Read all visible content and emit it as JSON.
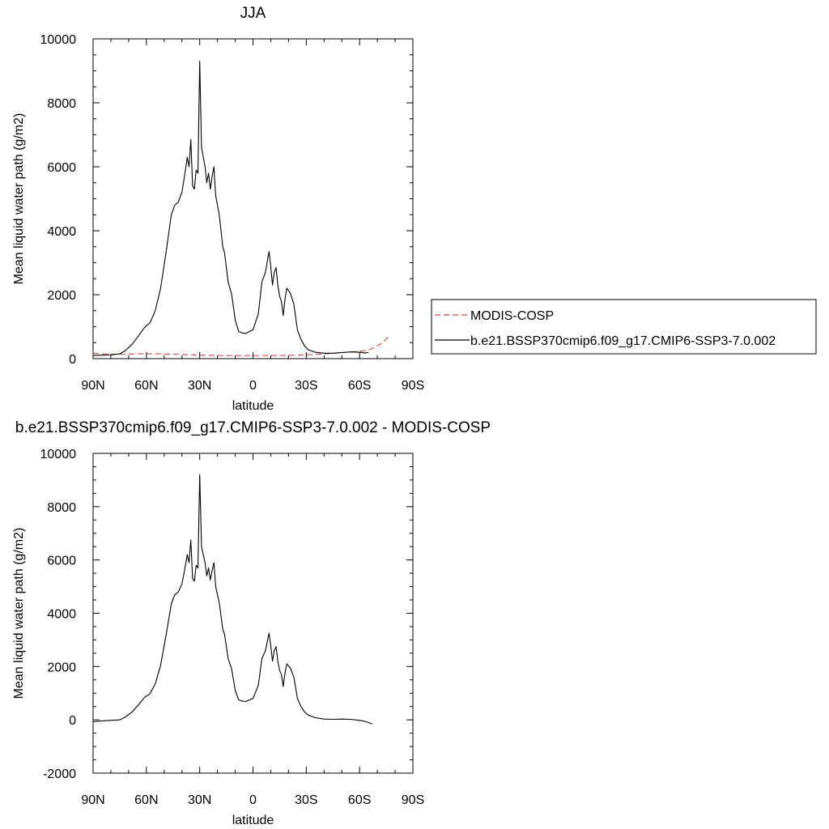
{
  "chart_data": [
    {
      "type": "line",
      "title": "JJA",
      "xlabel": "latitude",
      "ylabel": "Mean liquid water path (g/m2)",
      "xlim": [
        90,
        -90
      ],
      "ylim": [
        0,
        10000
      ],
      "x_ticks": [
        90,
        60,
        30,
        0,
        -30,
        -60,
        -90
      ],
      "x_tick_labels": [
        "90N",
        "60N",
        "30N",
        "0",
        "30S",
        "60S",
        "90S"
      ],
      "y_ticks": [
        0,
        2000,
        4000,
        6000,
        8000,
        10000
      ],
      "y_tick_labels": [
        "0",
        "2000",
        "4000",
        "6000",
        "8000",
        "10000"
      ],
      "grid": false,
      "legend": "right-outside",
      "series": [
        {
          "name": "MODIS-COSP",
          "color": "#e8413d",
          "dash": "dashed",
          "points": [
            [
              90,
              170
            ],
            [
              85,
              150
            ],
            [
              80,
              140
            ],
            [
              75,
              140
            ],
            [
              70,
              145
            ],
            [
              65,
              150
            ],
            [
              60,
              150
            ],
            [
              55,
              150
            ],
            [
              50,
              145
            ],
            [
              45,
              140
            ],
            [
              40,
              130
            ],
            [
              35,
              120
            ],
            [
              30,
              110
            ],
            [
              25,
              105
            ],
            [
              20,
              100
            ],
            [
              15,
              95
            ],
            [
              10,
              95
            ],
            [
              5,
              95
            ],
            [
              0,
              95
            ],
            [
              -5,
              100
            ],
            [
              -10,
              100
            ],
            [
              -15,
              100
            ],
            [
              -20,
              105
            ],
            [
              -25,
              110
            ],
            [
              -30,
              120
            ],
            [
              -35,
              130
            ],
            [
              -40,
              150
            ],
            [
              -45,
              170
            ],
            [
              -50,
              190
            ],
            [
              -55,
              210
            ],
            [
              -60,
              230
            ],
            [
              -65,
              260
            ],
            [
              -70,
              400
            ],
            [
              -73,
              500
            ],
            [
              -76,
              680
            ]
          ]
        },
        {
          "name": "b.e21.BSSP370cmip6.f09_g17.CMIP6-SSP3-7.0.002",
          "color": "#000000",
          "dash": "solid",
          "points": [
            [
              90,
              100
            ],
            [
              85,
              110
            ],
            [
              80,
              120
            ],
            [
              75,
              150
            ],
            [
              72,
              250
            ],
            [
              68,
              450
            ],
            [
              64,
              750
            ],
            [
              61,
              980
            ],
            [
              58,
              1120
            ],
            [
              55,
              1500
            ],
            [
              52,
              2200
            ],
            [
              49,
              3300
            ],
            [
              46,
              4500
            ],
            [
              44,
              4800
            ],
            [
              42,
              4900
            ],
            [
              40,
              5200
            ],
            [
              38,
              5900
            ],
            [
              37,
              6300
            ],
            [
              36,
              6000
            ],
            [
              35,
              6850
            ],
            [
              34,
              5400
            ],
            [
              33,
              5300
            ],
            [
              32,
              5900
            ],
            [
              31,
              5800
            ],
            [
              30,
              9300
            ],
            [
              29,
              6600
            ],
            [
              28,
              6300
            ],
            [
              27,
              6000
            ],
            [
              26,
              5500
            ],
            [
              25,
              5800
            ],
            [
              24,
              5300
            ],
            [
              23,
              5700
            ],
            [
              22,
              6000
            ],
            [
              21,
              5100
            ],
            [
              19,
              4500
            ],
            [
              17,
              3500
            ],
            [
              16,
              3300
            ],
            [
              14,
              2400
            ],
            [
              12,
              2000
            ],
            [
              10,
              1200
            ],
            [
              8,
              850
            ],
            [
              6,
              800
            ],
            [
              4,
              790
            ],
            [
              2,
              850
            ],
            [
              0,
              900
            ],
            [
              -3,
              1400
            ],
            [
              -5,
              2400
            ],
            [
              -7,
              2700
            ],
            [
              -9,
              3350
            ],
            [
              -10,
              2900
            ],
            [
              -11,
              2300
            ],
            [
              -12,
              2700
            ],
            [
              -13,
              2850
            ],
            [
              -14,
              2300
            ],
            [
              -15,
              1950
            ],
            [
              -16,
              1800
            ],
            [
              -17,
              1350
            ],
            [
              -18,
              1850
            ],
            [
              -19,
              2200
            ],
            [
              -21,
              2050
            ],
            [
              -23,
              1700
            ],
            [
              -25,
              900
            ],
            [
              -27,
              600
            ],
            [
              -29,
              400
            ],
            [
              -31,
              280
            ],
            [
              -35,
              200
            ],
            [
              -40,
              170
            ],
            [
              -45,
              170
            ],
            [
              -50,
              190
            ],
            [
              -55,
              210
            ],
            [
              -60,
              200
            ],
            [
              -63,
              180
            ],
            [
              -65,
              190
            ]
          ]
        }
      ]
    },
    {
      "type": "line",
      "title": "b.e21.BSSP370cmip6.f09_g17.CMIP6-SSP3-7.0.002 - MODIS-COSP",
      "xlabel": "latitude",
      "ylabel": "Mean liquid water path (g/m2)",
      "xlim": [
        90,
        -90
      ],
      "ylim": [
        -2000,
        10000
      ],
      "x_ticks": [
        90,
        60,
        30,
        0,
        -30,
        -60,
        -90
      ],
      "x_tick_labels": [
        "90N",
        "60N",
        "30N",
        "0",
        "30S",
        "60S",
        "90S"
      ],
      "y_ticks": [
        -2000,
        0,
        2000,
        4000,
        6000,
        8000,
        10000
      ],
      "y_tick_labels": [
        "-2000",
        "0",
        "2000",
        "4000",
        "6000",
        "8000",
        "10000"
      ],
      "grid": false,
      "series": [
        {
          "color": "#000000",
          "dash": "solid",
          "points": [
            [
              90,
              -70
            ],
            [
              85,
              -40
            ],
            [
              80,
              -20
            ],
            [
              75,
              0
            ],
            [
              72,
              100
            ],
            [
              68,
              300
            ],
            [
              64,
              600
            ],
            [
              61,
              850
            ],
            [
              58,
              980
            ],
            [
              55,
              1350
            ],
            [
              52,
              2050
            ],
            [
              49,
              3150
            ],
            [
              46,
              4350
            ],
            [
              44,
              4700
            ],
            [
              42,
              4800
            ],
            [
              40,
              5100
            ],
            [
              38,
              5800
            ],
            [
              37,
              6200
            ],
            [
              36,
              5900
            ],
            [
              35,
              6750
            ],
            [
              34,
              5300
            ],
            [
              33,
              5200
            ],
            [
              32,
              5800
            ],
            [
              31,
              5700
            ],
            [
              30,
              9200
            ],
            [
              29,
              6500
            ],
            [
              28,
              6200
            ],
            [
              27,
              5900
            ],
            [
              26,
              5400
            ],
            [
              25,
              5700
            ],
            [
              24,
              5250
            ],
            [
              23,
              5600
            ],
            [
              22,
              5900
            ],
            [
              21,
              5000
            ],
            [
              19,
              4400
            ],
            [
              17,
              3400
            ],
            [
              16,
              3200
            ],
            [
              14,
              2300
            ],
            [
              12,
              1900
            ],
            [
              10,
              1100
            ],
            [
              8,
              750
            ],
            [
              6,
              700
            ],
            [
              4,
              690
            ],
            [
              2,
              750
            ],
            [
              0,
              800
            ],
            [
              -3,
              1300
            ],
            [
              -5,
              2300
            ],
            [
              -7,
              2600
            ],
            [
              -9,
              3250
            ],
            [
              -10,
              2800
            ],
            [
              -11,
              2200
            ],
            [
              -12,
              2600
            ],
            [
              -13,
              2750
            ],
            [
              -14,
              2200
            ],
            [
              -15,
              1850
            ],
            [
              -16,
              1700
            ],
            [
              -17,
              1250
            ],
            [
              -18,
              1750
            ],
            [
              -19,
              2100
            ],
            [
              -21,
              1950
            ],
            [
              -23,
              1600
            ],
            [
              -25,
              800
            ],
            [
              -27,
              500
            ],
            [
              -29,
              300
            ],
            [
              -31,
              180
            ],
            [
              -35,
              80
            ],
            [
              -40,
              30
            ],
            [
              -45,
              20
            ],
            [
              -50,
              30
            ],
            [
              -55,
              20
            ],
            [
              -60,
              -20
            ],
            [
              -63,
              -60
            ],
            [
              -65,
              -100
            ],
            [
              -67,
              -150
            ]
          ]
        }
      ]
    }
  ]
}
